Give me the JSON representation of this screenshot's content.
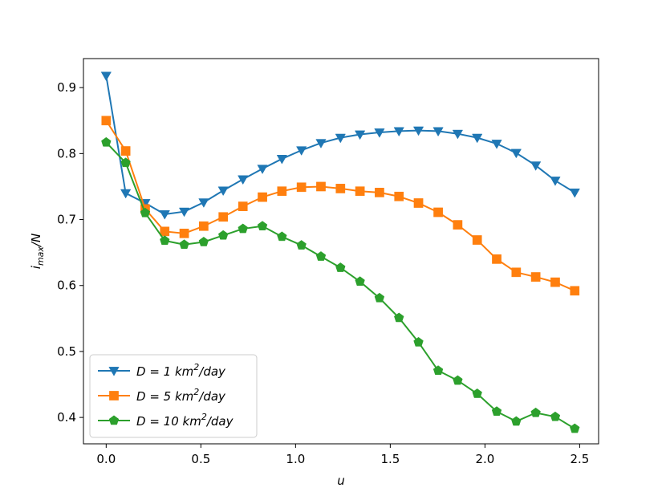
{
  "chart_data": {
    "type": "line",
    "title": "",
    "xlabel": "u",
    "ylabel_main": "i",
    "ylabel_sub": "max",
    "ylabel_suffix": "/N",
    "xlim": [
      -0.12,
      2.6
    ],
    "ylim": [
      0.36,
      0.944
    ],
    "xticks": [
      0.0,
      0.5,
      1.0,
      1.5,
      2.0,
      2.5
    ],
    "xtick_labels": [
      "0.0",
      "0.5",
      "1.0",
      "1.5",
      "2.0",
      "2.5"
    ],
    "yticks": [
      0.4,
      0.5,
      0.6,
      0.7,
      0.8,
      0.9
    ],
    "ytick_labels": [
      "0.4",
      "0.5",
      "0.6",
      "0.7",
      "0.8",
      "0.9"
    ],
    "grid": false,
    "legend_position": "lower-left",
    "x": [
      0.0,
      0.103,
      0.206,
      0.309,
      0.412,
      0.515,
      0.618,
      0.722,
      0.825,
      0.928,
      1.031,
      1.134,
      1.237,
      1.34,
      1.443,
      1.546,
      1.649,
      1.753,
      1.856,
      1.959,
      2.062,
      2.165,
      2.268,
      2.371,
      2.474
    ],
    "series": [
      {
        "name_prefix": "D = 1 ",
        "unit": "km",
        "sup": "2",
        "unit_suffix": "/day",
        "color": "#1f77b4",
        "marker": "triangle-down",
        "values": [
          0.918,
          0.74,
          0.725,
          0.708,
          0.712,
          0.726,
          0.744,
          0.761,
          0.777,
          0.792,
          0.805,
          0.816,
          0.824,
          0.829,
          0.832,
          0.834,
          0.835,
          0.834,
          0.83,
          0.824,
          0.815,
          0.801,
          0.782,
          0.759,
          0.741
        ]
      },
      {
        "name_prefix": "D = 5 ",
        "unit": "km",
        "sup": "2",
        "unit_suffix": "/day",
        "color": "#ff7f0e",
        "marker": "square",
        "values": [
          0.85,
          0.804,
          0.716,
          0.682,
          0.679,
          0.69,
          0.704,
          0.72,
          0.734,
          0.743,
          0.749,
          0.75,
          0.747,
          0.743,
          0.741,
          0.735,
          0.725,
          0.711,
          0.692,
          0.669,
          0.64,
          0.62,
          0.613,
          0.605,
          0.592
        ]
      },
      {
        "name_prefix": "D = 10 ",
        "unit": "km",
        "sup": "2",
        "unit_suffix": "/day",
        "color": "#2ca02c",
        "marker": "pentagon",
        "values": [
          0.817,
          0.786,
          0.71,
          0.668,
          0.662,
          0.666,
          0.676,
          0.686,
          0.69,
          0.674,
          0.661,
          0.644,
          0.627,
          0.606,
          0.581,
          0.551,
          0.514,
          0.471,
          0.456,
          0.436,
          0.409,
          0.394,
          0.407,
          0.401,
          0.383
        ]
      }
    ]
  }
}
